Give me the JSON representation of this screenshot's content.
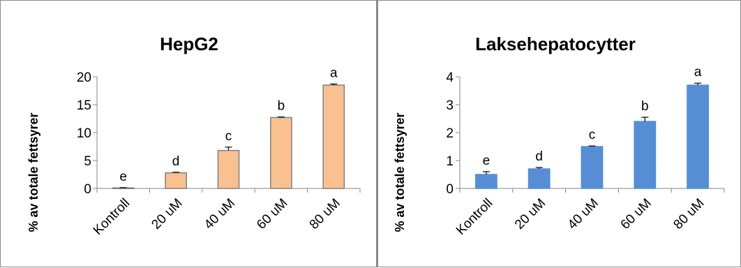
{
  "chart_data": [
    {
      "type": "bar",
      "title": "HepG2",
      "ylabel": "% av totale fettsyrer",
      "xlabel": "",
      "categories": [
        "Kontroll",
        "20 uM",
        "40 uM",
        "60 uM",
        "80 uM"
      ],
      "values": [
        0.1,
        2.8,
        6.8,
        12.7,
        18.5
      ],
      "error": [
        0.05,
        0.1,
        0.6,
        0.1,
        0.2
      ],
      "labels": [
        "e",
        "d",
        "c",
        "b",
        "a"
      ],
      "yticks": [
        "0",
        "5",
        "10",
        "15",
        "20"
      ],
      "ylim": [
        0,
        20
      ],
      "grid": false,
      "bar_color": "#FAC090",
      "bar_border": "#808080"
    },
    {
      "type": "bar",
      "title": "Laksehepatocytter",
      "ylabel": "% av totale fettsyrer",
      "xlabel": "",
      "categories": [
        "Kontroll",
        "20 uM",
        "40 uM",
        "60 uM",
        "80 uM"
      ],
      "values": [
        0.5,
        0.7,
        1.5,
        2.4,
        3.7
      ],
      "error": [
        0.1,
        0.05,
        0.02,
        0.15,
        0.07
      ],
      "labels": [
        "e",
        "d",
        "c",
        "b",
        "a"
      ],
      "yticks": [
        "0",
        "1",
        "2",
        "3",
        "4"
      ],
      "ylim": [
        0,
        4
      ],
      "grid": false,
      "bar_color": "#558ED5",
      "bar_border": "#558ED5"
    }
  ]
}
